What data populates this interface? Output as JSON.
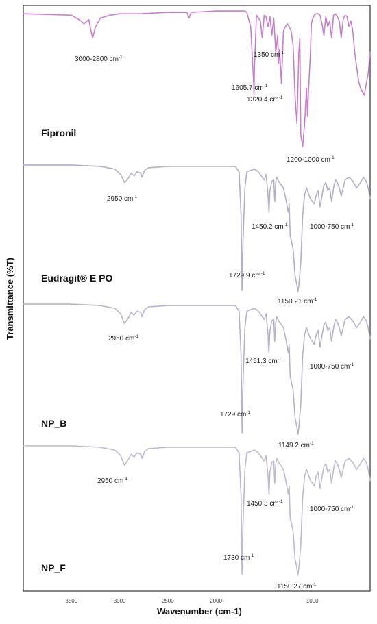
{
  "chart_data": {
    "type": "line",
    "xlabel": "Wavenumber (cm-1)",
    "ylabel": "Transmittance (%T)",
    "xlim": [
      4000,
      400
    ],
    "x_ticks": [
      3500,
      3000,
      2500,
      2000,
      1000
    ],
    "x_tick_labels": [
      "3500",
      "3000",
      "2500",
      "2000",
      "1000"
    ],
    "colors": {
      "frame": "#333333",
      "Fipronil": "#c77fcd",
      "Eudragit® E PO": "#b5aec6",
      "NP_B": "#b9b2c8",
      "NP_F": "#c0b8cc"
    },
    "series": [
      {
        "name": "Fipronil",
        "annotations": [
          {
            "text": "3000-2800 cm",
            "sup": "-1",
            "x": 3200
          },
          {
            "text": "1350 cm",
            "sup": "-1",
            "x": 1350
          },
          {
            "text": "1605.7 cm",
            "sup": "-1",
            "x": 1605.7
          },
          {
            "text": "1320.4 cm",
            "sup": "-1",
            "x": 1320.4
          },
          {
            "text": "1200-1000 cm",
            "sup": "-1",
            "x": 1100
          }
        ],
        "x": [
          4000,
          3500,
          3400,
          3370,
          3320,
          3300,
          3280,
          3250,
          3200,
          3100,
          3000,
          2800,
          2500,
          2300,
          2280,
          2260,
          2000,
          1700,
          1680,
          1640,
          1610,
          1605.7,
          1600,
          1580,
          1560,
          1540,
          1520,
          1500,
          1480,
          1460,
          1440,
          1420,
          1400,
          1380,
          1360,
          1350,
          1340,
          1320.4,
          1300,
          1280,
          1260,
          1240,
          1220,
          1200,
          1180,
          1160,
          1140,
          1130,
          1120,
          1100,
          1080,
          1060,
          1050,
          1040,
          1020,
          1010,
          1000,
          980,
          960,
          940,
          920,
          900,
          880,
          860,
          840,
          820,
          800,
          780,
          760,
          740,
          720,
          700,
          680,
          660,
          640,
          620,
          600,
          580,
          560,
          540,
          520,
          500,
          480,
          460,
          440,
          420,
          400
        ],
        "y": [
          97,
          96,
          92,
          90,
          93,
          86,
          80,
          88,
          94,
          96,
          97,
          97,
          98,
          98,
          94,
          98,
          99,
          99,
          98,
          88,
          50,
          40,
          60,
          96,
          94,
          92,
          80,
          96,
          95,
          88,
          95,
          82,
          94,
          70,
          82,
          62,
          72,
          48,
          85,
          88,
          90,
          88,
          85,
          75,
          40,
          20,
          70,
          80,
          12,
          4,
          20,
          45,
          25,
          42,
          70,
          90,
          93,
          96,
          97,
          97,
          96,
          90,
          82,
          95,
          88,
          92,
          80,
          96,
          97,
          95,
          92,
          80,
          93,
          96,
          95,
          88,
          92,
          85,
          70,
          60,
          50,
          45,
          42,
          40,
          48,
          55,
          70
        ]
      },
      {
        "name": "Eudragit® E PO",
        "annotations": [
          {
            "text": "2950 cm",
            "sup": "-1",
            "x": 2950
          },
          {
            "text": "1450.2 cm",
            "sup": "-1",
            "x": 1450.2
          },
          {
            "text": "1000-750 cm",
            "sup": "-1",
            "x": 875
          },
          {
            "text": "1729.9 cm",
            "sup": "-1",
            "x": 1729.9
          },
          {
            "text": "1150.21 cm",
            "sup": "-1",
            "x": 1150.21
          }
        ],
        "x": [
          4000,
          3500,
          3200,
          3050,
          2990,
          2950,
          2920,
          2880,
          2850,
          2820,
          2780,
          2770,
          2740,
          2700,
          2500,
          2000,
          1800,
          1760,
          1740,
          1729.9,
          1720,
          1700,
          1680,
          1640,
          1600,
          1560,
          1540,
          1500,
          1480,
          1460,
          1450.2,
          1440,
          1420,
          1400,
          1390,
          1380,
          1370,
          1350,
          1300,
          1270,
          1250,
          1240,
          1230,
          1200,
          1180,
          1160,
          1150.21,
          1140,
          1120,
          1100,
          1080,
          1060,
          1040,
          1020,
          1000,
          980,
          960,
          940,
          920,
          900,
          880,
          860,
          840,
          820,
          800,
          780,
          760,
          740,
          720,
          700,
          660,
          620,
          580,
          540,
          500,
          470,
          440,
          420,
          400
        ],
        "y": [
          97,
          97,
          96,
          94,
          90,
          84,
          86,
          91,
          89,
          92,
          91,
          88,
          93,
          95,
          96,
          96,
          96,
          92,
          60,
          4,
          40,
          80,
          92,
          93,
          94,
          92,
          90,
          86,
          90,
          75,
          62,
          78,
          85,
          86,
          70,
          84,
          88,
          85,
          80,
          70,
          62,
          68,
          45,
          35,
          15,
          8,
          3,
          8,
          25,
          60,
          75,
          80,
          76,
          72,
          70,
          68,
          75,
          78,
          66,
          74,
          82,
          84,
          78,
          80,
          70,
          80,
          86,
          84,
          80,
          74,
          86,
          88,
          85,
          80,
          84,
          88,
          85,
          80,
          72
        ]
      },
      {
        "name": "NP_B",
        "annotations": [
          {
            "text": "2950 cm",
            "sup": "-1",
            "x": 2950
          },
          {
            "text": "1451.3 cm",
            "sup": "-1",
            "x": 1451.3
          },
          {
            "text": "1000-750 cm",
            "sup": "-1",
            "x": 875
          },
          {
            "text": "1729 cm",
            "sup": "-1",
            "x": 1729
          },
          {
            "text": "1149.2 cm",
            "sup": "-1",
            "x": 1149.2
          }
        ],
        "x": [
          4000,
          3500,
          3200,
          3050,
          2990,
          2950,
          2920,
          2880,
          2850,
          2820,
          2780,
          2770,
          2740,
          2700,
          2500,
          2000,
          1800,
          1760,
          1740,
          1729,
          1720,
          1700,
          1680,
          1640,
          1600,
          1560,
          1540,
          1500,
          1480,
          1460,
          1451.3,
          1440,
          1420,
          1400,
          1390,
          1380,
          1370,
          1350,
          1300,
          1270,
          1250,
          1240,
          1230,
          1200,
          1180,
          1160,
          1149.2,
          1140,
          1120,
          1100,
          1080,
          1060,
          1040,
          1020,
          1000,
          980,
          960,
          940,
          920,
          900,
          880,
          860,
          840,
          820,
          800,
          780,
          760,
          740,
          720,
          700,
          660,
          620,
          580,
          540,
          500,
          470,
          440,
          420,
          400
        ],
        "y": [
          97,
          97,
          96,
          94,
          90,
          83,
          86,
          91,
          89,
          92,
          91,
          88,
          93,
          95,
          96,
          96,
          96,
          92,
          60,
          4,
          40,
          80,
          92,
          93,
          94,
          92,
          90,
          86,
          90,
          75,
          62,
          78,
          85,
          86,
          70,
          84,
          88,
          85,
          80,
          70,
          62,
          68,
          45,
          35,
          15,
          8,
          3,
          8,
          25,
          60,
          75,
          80,
          76,
          72,
          70,
          68,
          75,
          78,
          66,
          74,
          82,
          84,
          78,
          80,
          70,
          80,
          86,
          84,
          80,
          74,
          86,
          88,
          85,
          80,
          84,
          88,
          85,
          80,
          72
        ]
      },
      {
        "name": "NP_F",
        "annotations": [
          {
            "text": "2950 cm",
            "sup": "-1",
            "x": 2950
          },
          {
            "text": "1450.3 cm",
            "sup": "-1",
            "x": 1450.3
          },
          {
            "text": "1000-750 cm",
            "sup": "-1",
            "x": 875
          },
          {
            "text": "1730 cm",
            "sup": "-1",
            "x": 1730
          },
          {
            "text": "1150.27 cm",
            "sup": "-1",
            "x": 1150.27
          }
        ],
        "x": [
          4000,
          3500,
          3200,
          3050,
          2990,
          2950,
          2920,
          2880,
          2850,
          2820,
          2780,
          2770,
          2740,
          2700,
          2500,
          2000,
          1800,
          1760,
          1740,
          1730,
          1720,
          1700,
          1680,
          1640,
          1600,
          1560,
          1540,
          1500,
          1480,
          1460,
          1450.3,
          1440,
          1420,
          1400,
          1390,
          1380,
          1370,
          1350,
          1300,
          1270,
          1250,
          1240,
          1230,
          1200,
          1180,
          1160,
          1150.27,
          1140,
          1120,
          1100,
          1080,
          1060,
          1040,
          1020,
          1000,
          980,
          960,
          940,
          920,
          900,
          880,
          860,
          840,
          820,
          800,
          780,
          760,
          740,
          720,
          700,
          660,
          620,
          580,
          540,
          500,
          470,
          440,
          420,
          400
        ],
        "y": [
          97,
          97,
          96,
          94,
          90,
          83,
          86,
          91,
          89,
          92,
          91,
          88,
          93,
          95,
          96,
          96,
          96,
          92,
          60,
          4,
          40,
          80,
          92,
          93,
          94,
          92,
          90,
          86,
          90,
          75,
          62,
          78,
          85,
          86,
          70,
          84,
          88,
          85,
          80,
          70,
          62,
          68,
          45,
          35,
          15,
          8,
          3,
          8,
          25,
          60,
          75,
          80,
          76,
          72,
          70,
          68,
          75,
          78,
          66,
          74,
          82,
          84,
          78,
          80,
          70,
          80,
          86,
          84,
          80,
          74,
          86,
          88,
          85,
          80,
          84,
          88,
          85,
          80,
          72
        ]
      }
    ]
  }
}
